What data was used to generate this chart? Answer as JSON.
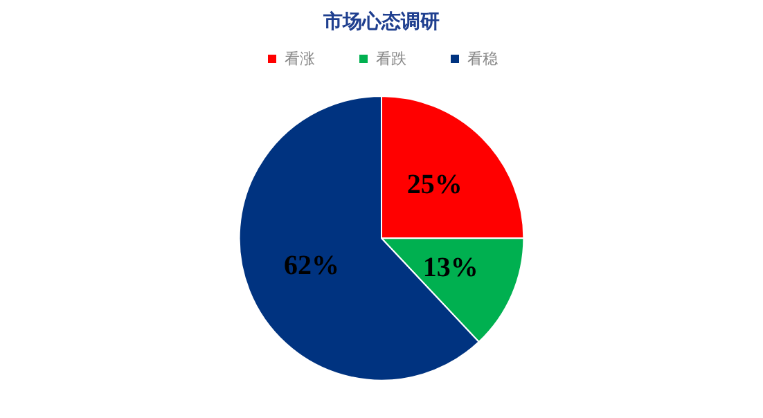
{
  "chart_data": {
    "type": "pie",
    "title": "市场心态调研",
    "categories": [
      "看涨",
      "看跌",
      "看稳"
    ],
    "values": [
      25,
      13,
      62
    ],
    "colors": [
      "#ff0000",
      "#00b050",
      "#003380"
    ],
    "value_labels": [
      "25%",
      "13%",
      "62%"
    ],
    "legend": "top"
  }
}
